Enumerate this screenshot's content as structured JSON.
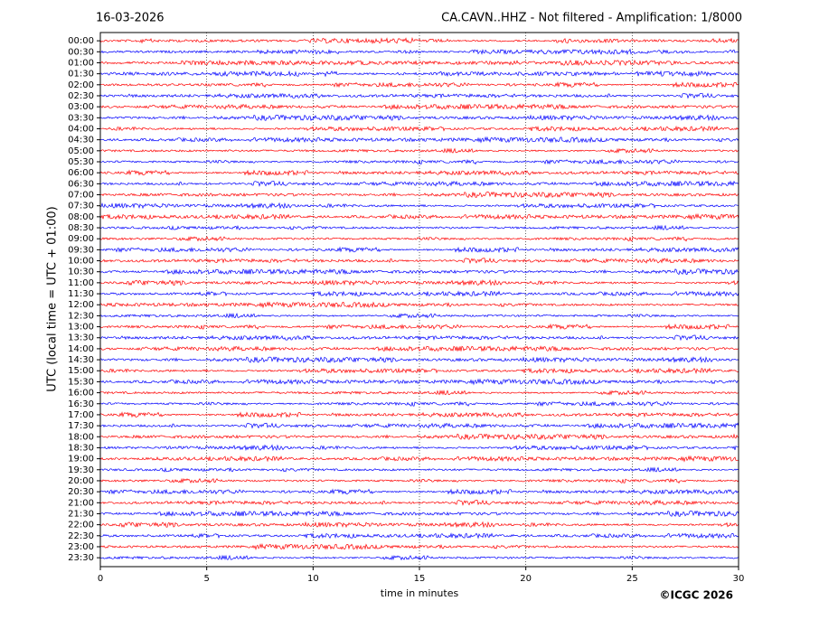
{
  "chart_data": {
    "type": "helicorder",
    "title_left": "16-03-2026",
    "title_right": "CA.CAVN..HHZ - Not filtered - Amplification: 1/8000",
    "y_label": "UTC (local time = UTC + 01:00)",
    "x_label": "time in minutes",
    "credit": "©ICGC 2026",
    "categories": [
      "00:00",
      "00:30",
      "01:00",
      "01:30",
      "02:00",
      "02:30",
      "03:00",
      "03:30",
      "04:00",
      "04:30",
      "05:00",
      "05:30",
      "06:00",
      "06:30",
      "07:00",
      "07:30",
      "08:00",
      "08:30",
      "09:00",
      "09:30",
      "10:00",
      "10:30",
      "11:00",
      "11:30",
      "12:00",
      "12:30",
      "13:00",
      "13:30",
      "14:00",
      "14:30",
      "15:00",
      "15:30",
      "16:00",
      "16:30",
      "17:00",
      "17:30",
      "18:00",
      "18:30",
      "19:00",
      "19:30",
      "20:00",
      "20:30",
      "21:00",
      "21:30",
      "22:00",
      "22:30",
      "23:00",
      "23:30"
    ],
    "colors": [
      "#ff0000",
      "#0000ff"
    ],
    "xlim": [
      0,
      30
    ],
    "xticks": [
      0,
      5,
      10,
      15,
      20,
      25,
      30
    ],
    "grid": true
  }
}
